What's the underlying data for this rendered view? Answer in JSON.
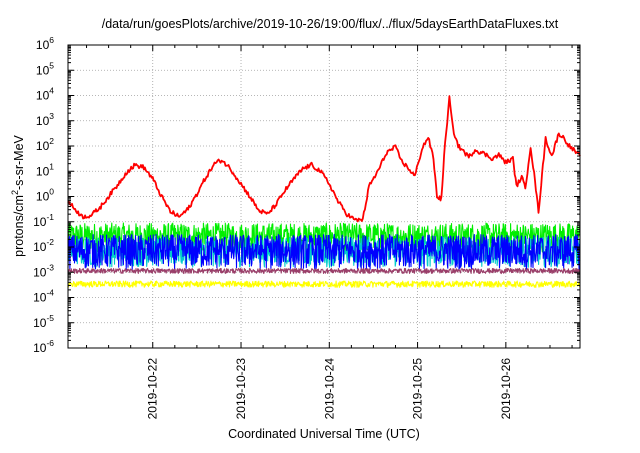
{
  "chart_data": {
    "type": "line",
    "title": "/data/run/goesPlots/archive/2019-10-26/19:00/flux/../flux/5daysEarthDataFluxes.txt",
    "xlabel": "Coordinated Universal Time (UTC)",
    "ylabel_parts": [
      "protons/cm",
      "2",
      "-s-sr-MeV"
    ],
    "y_scale": "log",
    "ylim_exp": [
      -6,
      6
    ],
    "y_tick_exponents": [
      -6,
      -5,
      -4,
      -3,
      -2,
      -1,
      0,
      1,
      2,
      3,
      4,
      5,
      6
    ],
    "y_tick_base": "10",
    "x_domain_days": [
      21.04,
      26.84
    ],
    "x_tick_labels": [
      "2019-10-22",
      "2019-10-23",
      "2019-10-24",
      "2019-10-25",
      "2019-10-26"
    ],
    "x_tick_days": [
      22,
      23,
      24,
      25,
      26
    ],
    "grid": true,
    "series": [
      {
        "color": "#00ee00",
        "band": [
          -2.2,
          -1.05
        ]
      },
      {
        "color": "#00cccc",
        "band": [
          -2.8,
          -1.6
        ]
      },
      {
        "color": "#0000ff",
        "band": [
          -2.9,
          -1.5
        ]
      },
      {
        "color": "#ffff00",
        "band": [
          -3.6,
          -3.35
        ]
      },
      {
        "color": "#9a3f6a",
        "band": [
          -3.05,
          -2.85
        ]
      },
      {
        "color": "#ff0000",
        "points": [
          [
            21.04,
            -0.2
          ],
          [
            21.12,
            -0.5
          ],
          [
            21.2,
            -0.8
          ],
          [
            21.3,
            -0.75
          ],
          [
            21.4,
            -0.45
          ],
          [
            21.5,
            0.0
          ],
          [
            21.6,
            0.45
          ],
          [
            21.7,
            0.95
          ],
          [
            21.8,
            1.25
          ],
          [
            21.9,
            1.15
          ],
          [
            22.0,
            0.7
          ],
          [
            22.1,
            0.0
          ],
          [
            22.2,
            -0.6
          ],
          [
            22.3,
            -0.8
          ],
          [
            22.4,
            -0.5
          ],
          [
            22.5,
            0.1
          ],
          [
            22.6,
            0.75
          ],
          [
            22.7,
            1.3
          ],
          [
            22.78,
            1.45
          ],
          [
            22.88,
            1.1
          ],
          [
            23.0,
            0.5
          ],
          [
            23.1,
            0.0
          ],
          [
            23.2,
            -0.55
          ],
          [
            23.3,
            -0.7
          ],
          [
            23.4,
            -0.3
          ],
          [
            23.5,
            0.25
          ],
          [
            23.6,
            0.7
          ],
          [
            23.7,
            1.1
          ],
          [
            23.8,
            1.25
          ],
          [
            23.9,
            1.0
          ],
          [
            24.0,
            0.5
          ],
          [
            24.1,
            -0.2
          ],
          [
            24.2,
            -0.7
          ],
          [
            24.3,
            -0.95
          ],
          [
            24.38,
            -0.9
          ],
          [
            24.45,
            0.4
          ],
          [
            24.55,
            1.0
          ],
          [
            24.65,
            1.75
          ],
          [
            24.75,
            1.95
          ],
          [
            24.82,
            1.4
          ],
          [
            24.9,
            1.1
          ],
          [
            24.97,
            0.8
          ],
          [
            25.05,
            1.9
          ],
          [
            25.12,
            2.35
          ],
          [
            25.18,
            1.5
          ],
          [
            25.22,
            0.0
          ],
          [
            25.27,
            -0.1
          ],
          [
            25.3,
            1.6
          ],
          [
            25.36,
            3.9
          ],
          [
            25.4,
            2.7
          ],
          [
            25.46,
            2.0
          ],
          [
            25.52,
            1.8
          ],
          [
            25.58,
            1.55
          ],
          [
            25.65,
            1.85
          ],
          [
            25.75,
            1.7
          ],
          [
            25.85,
            1.5
          ],
          [
            25.92,
            1.65
          ],
          [
            26.0,
            1.35
          ],
          [
            26.08,
            1.5
          ],
          [
            26.12,
            0.4
          ],
          [
            26.18,
            0.8
          ],
          [
            26.22,
            0.3
          ],
          [
            26.28,
            2.0
          ],
          [
            26.32,
            0.9
          ],
          [
            26.37,
            -0.6
          ],
          [
            26.42,
            1.2
          ],
          [
            26.45,
            2.3
          ],
          [
            26.52,
            1.6
          ],
          [
            26.6,
            2.5
          ],
          [
            26.66,
            2.3
          ],
          [
            26.72,
            2.0
          ],
          [
            26.78,
            1.8
          ],
          [
            26.84,
            1.6
          ]
        ]
      }
    ]
  }
}
